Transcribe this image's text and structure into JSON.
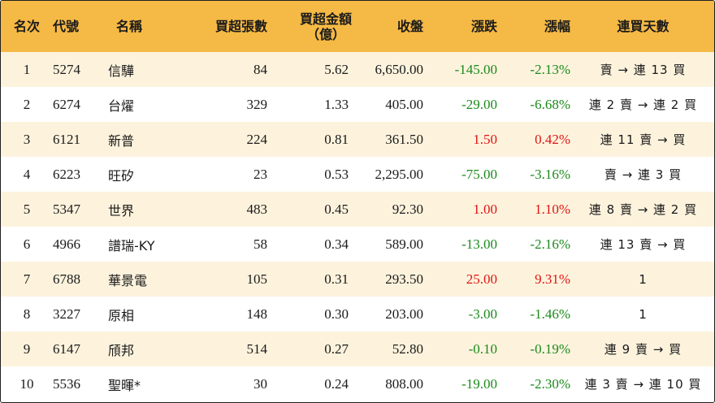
{
  "colors": {
    "header_bg": "#f5b945",
    "row_odd_bg": "#fdf3dd",
    "row_even_bg": "#ffffff",
    "down": "#1b8a1b",
    "up": "#e01414"
  },
  "headers": {
    "rank": "名次",
    "code": "代號",
    "name": "名稱",
    "net_lots": "買超張數",
    "net_amount_line1": "買超金額",
    "net_amount_line2": "（億）",
    "close": "收盤",
    "change": "漲跌",
    "change_pct": "漲幅",
    "streak": "連買天數"
  },
  "rows": [
    {
      "rank": "1",
      "code": "5274",
      "name": "信驊",
      "net_lots": "84",
      "net_amount": "5.62",
      "close": "6,650.00",
      "change": "-145.00",
      "change_pct": "-2.13%",
      "direction": "down",
      "streak": "賣 → 連 13 買"
    },
    {
      "rank": "2",
      "code": "6274",
      "name": "台燿",
      "net_lots": "329",
      "net_amount": "1.33",
      "close": "405.00",
      "change": "-29.00",
      "change_pct": "-6.68%",
      "direction": "down",
      "streak": "連 2 賣 → 連 2 買"
    },
    {
      "rank": "3",
      "code": "6121",
      "name": "新普",
      "net_lots": "224",
      "net_amount": "0.81",
      "close": "361.50",
      "change": "1.50",
      "change_pct": "0.42%",
      "direction": "up",
      "streak": "連 11 賣 → 買"
    },
    {
      "rank": "4",
      "code": "6223",
      "name": "旺矽",
      "net_lots": "23",
      "net_amount": "0.53",
      "close": "2,295.00",
      "change": "-75.00",
      "change_pct": "-3.16%",
      "direction": "down",
      "streak": "賣 → 連 3 買"
    },
    {
      "rank": "5",
      "code": "5347",
      "name": "世界",
      "net_lots": "483",
      "net_amount": "0.45",
      "close": "92.30",
      "change": "1.00",
      "change_pct": "1.10%",
      "direction": "up",
      "streak": "連 8 賣 → 連 2 買"
    },
    {
      "rank": "6",
      "code": "4966",
      "name": "譜瑞-KY",
      "net_lots": "58",
      "net_amount": "0.34",
      "close": "589.00",
      "change": "-13.00",
      "change_pct": "-2.16%",
      "direction": "down",
      "streak": "連 13 賣 → 買"
    },
    {
      "rank": "7",
      "code": "6788",
      "name": "華景電",
      "net_lots": "105",
      "net_amount": "0.31",
      "close": "293.50",
      "change": "25.00",
      "change_pct": "9.31%",
      "direction": "up",
      "streak": "1"
    },
    {
      "rank": "8",
      "code": "3227",
      "name": "原相",
      "net_lots": "148",
      "net_amount": "0.30",
      "close": "203.00",
      "change": "-3.00",
      "change_pct": "-1.46%",
      "direction": "down",
      "streak": "1"
    },
    {
      "rank": "9",
      "code": "6147",
      "name": "頎邦",
      "net_lots": "514",
      "net_amount": "0.27",
      "close": "52.80",
      "change": "-0.10",
      "change_pct": "-0.19%",
      "direction": "down",
      "streak": "連 9 賣 → 買"
    },
    {
      "rank": "10",
      "code": "5536",
      "name": "聖暉*",
      "net_lots": "30",
      "net_amount": "0.24",
      "close": "808.00",
      "change": "-19.00",
      "change_pct": "-2.30%",
      "direction": "down",
      "streak": "連 3 賣 → 連 10 買"
    }
  ]
}
